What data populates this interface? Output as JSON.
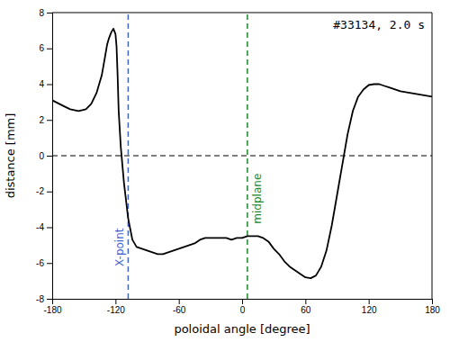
{
  "chart_data": {
    "type": "line",
    "title": "#33134, 2.0 s",
    "x_label": "poloidal angle [degree]",
    "y_label": "distance [mm]",
    "xlim": [
      -180,
      180
    ],
    "ylim": [
      -8,
      8
    ],
    "xticks": [
      -180,
      -120,
      -60,
      0,
      60,
      120,
      180
    ],
    "yticks": [
      -8,
      -6,
      -4,
      -2,
      0,
      2,
      4,
      6,
      8
    ],
    "color": "#000000",
    "grid": false,
    "x": [
      -180,
      -170,
      -163,
      -155,
      -148,
      -143,
      -138,
      -133,
      -130,
      -128,
      -126,
      -124,
      -122,
      -120,
      -119,
      -118,
      -117,
      -115,
      -112,
      -108,
      -104,
      -100,
      -95,
      -90,
      -85,
      -80,
      -75,
      -70,
      -65,
      -60,
      -55,
      -50,
      -45,
      -40,
      -35,
      -30,
      -25,
      -20,
      -15,
      -10,
      -5,
      0,
      5,
      10,
      15,
      20,
      25,
      30,
      35,
      40,
      45,
      50,
      55,
      60,
      65,
      70,
      75,
      80,
      85,
      90,
      95,
      100,
      105,
      110,
      115,
      120,
      125,
      130,
      135,
      140,
      145,
      150,
      155,
      160,
      165,
      170,
      175,
      180
    ],
    "values": [
      3.1,
      2.8,
      2.6,
      2.5,
      2.6,
      2.9,
      3.5,
      4.5,
      5.5,
      6.2,
      6.6,
      6.9,
      7.1,
      6.8,
      6.1,
      4.5,
      2.5,
      0.5,
      -1.5,
      -3.5,
      -4.7,
      -5.1,
      -5.2,
      -5.3,
      -5.4,
      -5.5,
      -5.5,
      -5.4,
      -5.3,
      -5.2,
      -5.1,
      -5.0,
      -4.9,
      -4.7,
      -4.6,
      -4.6,
      -4.6,
      -4.6,
      -4.6,
      -4.7,
      -4.6,
      -4.6,
      -4.5,
      -4.5,
      -4.5,
      -4.6,
      -4.8,
      -5.2,
      -5.5,
      -5.9,
      -6.2,
      -6.4,
      -6.6,
      -6.8,
      -6.85,
      -6.7,
      -6.2,
      -5.3,
      -3.9,
      -2.2,
      -0.5,
      1.2,
      2.5,
      3.3,
      3.7,
      3.95,
      4.0,
      4.0,
      3.9,
      3.8,
      3.7,
      3.6,
      3.55,
      3.5,
      3.45,
      3.4,
      3.35,
      3.3
    ],
    "annotations": [
      {
        "type": "hline",
        "y": 0,
        "color": "#000000",
        "line_style": "dashed"
      },
      {
        "type": "vline",
        "x": -108,
        "text": "X-point",
        "color": "#4466cc",
        "line_style": "dashed"
      },
      {
        "type": "vline",
        "x": 5,
        "text": "midplane",
        "color": "#228833",
        "line_style": "dashed"
      }
    ]
  }
}
